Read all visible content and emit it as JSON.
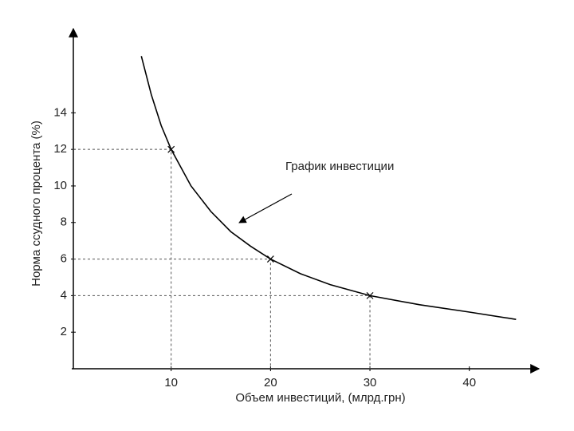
{
  "chart_data": {
    "type": "line",
    "x_label": "Объем инвестиций, (млрд.грн)",
    "y_label": "Норма ссудного процента (%)",
    "annotation": "График инвестиции",
    "xlim": [
      0,
      47
    ],
    "ylim": [
      0,
      18.6
    ],
    "xticks": [
      10,
      20,
      30,
      40
    ],
    "yticks": [
      2,
      4,
      6,
      8,
      10,
      12,
      14
    ],
    "color": "#000000",
    "x": [
      7,
      8,
      9,
      10,
      12,
      14,
      16,
      18,
      20,
      23,
      26,
      30,
      35,
      40,
      44.7
    ],
    "values": [
      17.1,
      15,
      13.3,
      12,
      10,
      8.6,
      7.5,
      6.7,
      6,
      5.2,
      4.6,
      4,
      3.5,
      3.1,
      2.7
    ],
    "marked_points": {
      "x": [
        10,
        20,
        30
      ],
      "values": [
        12,
        6,
        4
      ]
    }
  }
}
